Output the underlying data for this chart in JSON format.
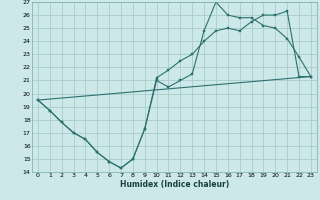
{
  "xlabel": "Humidex (Indice chaleur)",
  "xlim": [
    -0.5,
    23.5
  ],
  "ylim": [
    14,
    27
  ],
  "xticks": [
    0,
    1,
    2,
    3,
    4,
    5,
    6,
    7,
    8,
    9,
    10,
    11,
    12,
    13,
    14,
    15,
    16,
    17,
    18,
    19,
    20,
    21,
    22,
    23
  ],
  "yticks": [
    14,
    15,
    16,
    17,
    18,
    19,
    20,
    21,
    22,
    23,
    24,
    25,
    26,
    27
  ],
  "bg_color": "#cce8e8",
  "grid_color": "#aacccc",
  "line_color": "#2d7070",
  "line1_x": [
    0,
    1,
    2,
    3,
    4,
    5,
    6,
    7,
    8,
    9,
    10,
    11,
    12,
    13,
    14,
    15,
    16,
    17,
    18,
    19,
    20,
    21,
    22,
    23
  ],
  "line1_y": [
    19.5,
    18.7,
    17.8,
    17.0,
    16.5,
    15.5,
    14.8,
    14.3,
    15.0,
    17.3,
    21.0,
    20.5,
    21.0,
    21.5,
    24.8,
    27.0,
    26.0,
    25.8,
    25.8,
    25.2,
    25.0,
    24.2,
    22.8,
    21.3
  ],
  "line2_x": [
    0,
    1,
    2,
    3,
    4,
    5,
    6,
    7,
    8,
    9,
    10,
    11,
    12,
    13,
    14,
    15,
    16,
    17,
    18,
    19,
    20,
    21,
    22,
    23
  ],
  "line2_y": [
    19.5,
    18.7,
    17.8,
    17.0,
    16.5,
    15.5,
    14.8,
    14.3,
    15.0,
    17.3,
    21.2,
    21.8,
    22.5,
    23.0,
    24.0,
    24.8,
    25.0,
    24.8,
    25.5,
    26.0,
    26.0,
    26.3,
    21.3,
    21.3
  ],
  "line3_x": [
    0,
    23
  ],
  "line3_y": [
    19.5,
    21.3
  ]
}
